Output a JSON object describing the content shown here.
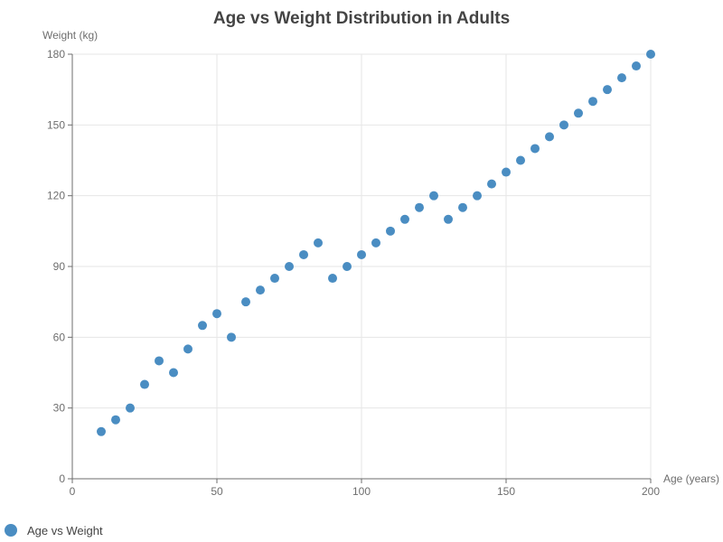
{
  "colors": {
    "series": "#4A8DC2",
    "grid": "#E6E6E6",
    "axis": "#6E6E6E",
    "tick_text": "#6E6E6E",
    "title": "#444444"
  },
  "chart_data": {
    "type": "scatter",
    "title": "Age vs Weight Distribution in Adults",
    "xlabel": "Age (years)",
    "ylabel": "Weight (kg)",
    "xlim": [
      0,
      200
    ],
    "ylim": [
      0,
      180
    ],
    "xticks": [
      0,
      50,
      100,
      150,
      200
    ],
    "yticks": [
      0,
      30,
      60,
      90,
      120,
      150,
      180
    ],
    "grid": true,
    "legend_position": "bottom-left",
    "series": [
      {
        "name": "Age vs Weight",
        "points": [
          [
            10,
            20
          ],
          [
            15,
            25
          ],
          [
            20,
            30
          ],
          [
            25,
            40
          ],
          [
            30,
            50
          ],
          [
            35,
            45
          ],
          [
            40,
            55
          ],
          [
            45,
            65
          ],
          [
            50,
            70
          ],
          [
            55,
            60
          ],
          [
            60,
            75
          ],
          [
            65,
            80
          ],
          [
            70,
            85
          ],
          [
            75,
            90
          ],
          [
            80,
            95
          ],
          [
            85,
            100
          ],
          [
            90,
            85
          ],
          [
            95,
            90
          ],
          [
            100,
            95
          ],
          [
            105,
            100
          ],
          [
            110,
            105
          ],
          [
            115,
            110
          ],
          [
            120,
            115
          ],
          [
            125,
            120
          ],
          [
            130,
            110
          ],
          [
            135,
            115
          ],
          [
            140,
            120
          ],
          [
            145,
            125
          ],
          [
            150,
            130
          ],
          [
            155,
            135
          ],
          [
            160,
            140
          ],
          [
            165,
            145
          ],
          [
            170,
            150
          ],
          [
            175,
            155
          ],
          [
            180,
            160
          ],
          [
            185,
            165
          ],
          [
            190,
            170
          ],
          [
            195,
            175
          ],
          [
            200,
            180
          ]
        ]
      }
    ]
  }
}
